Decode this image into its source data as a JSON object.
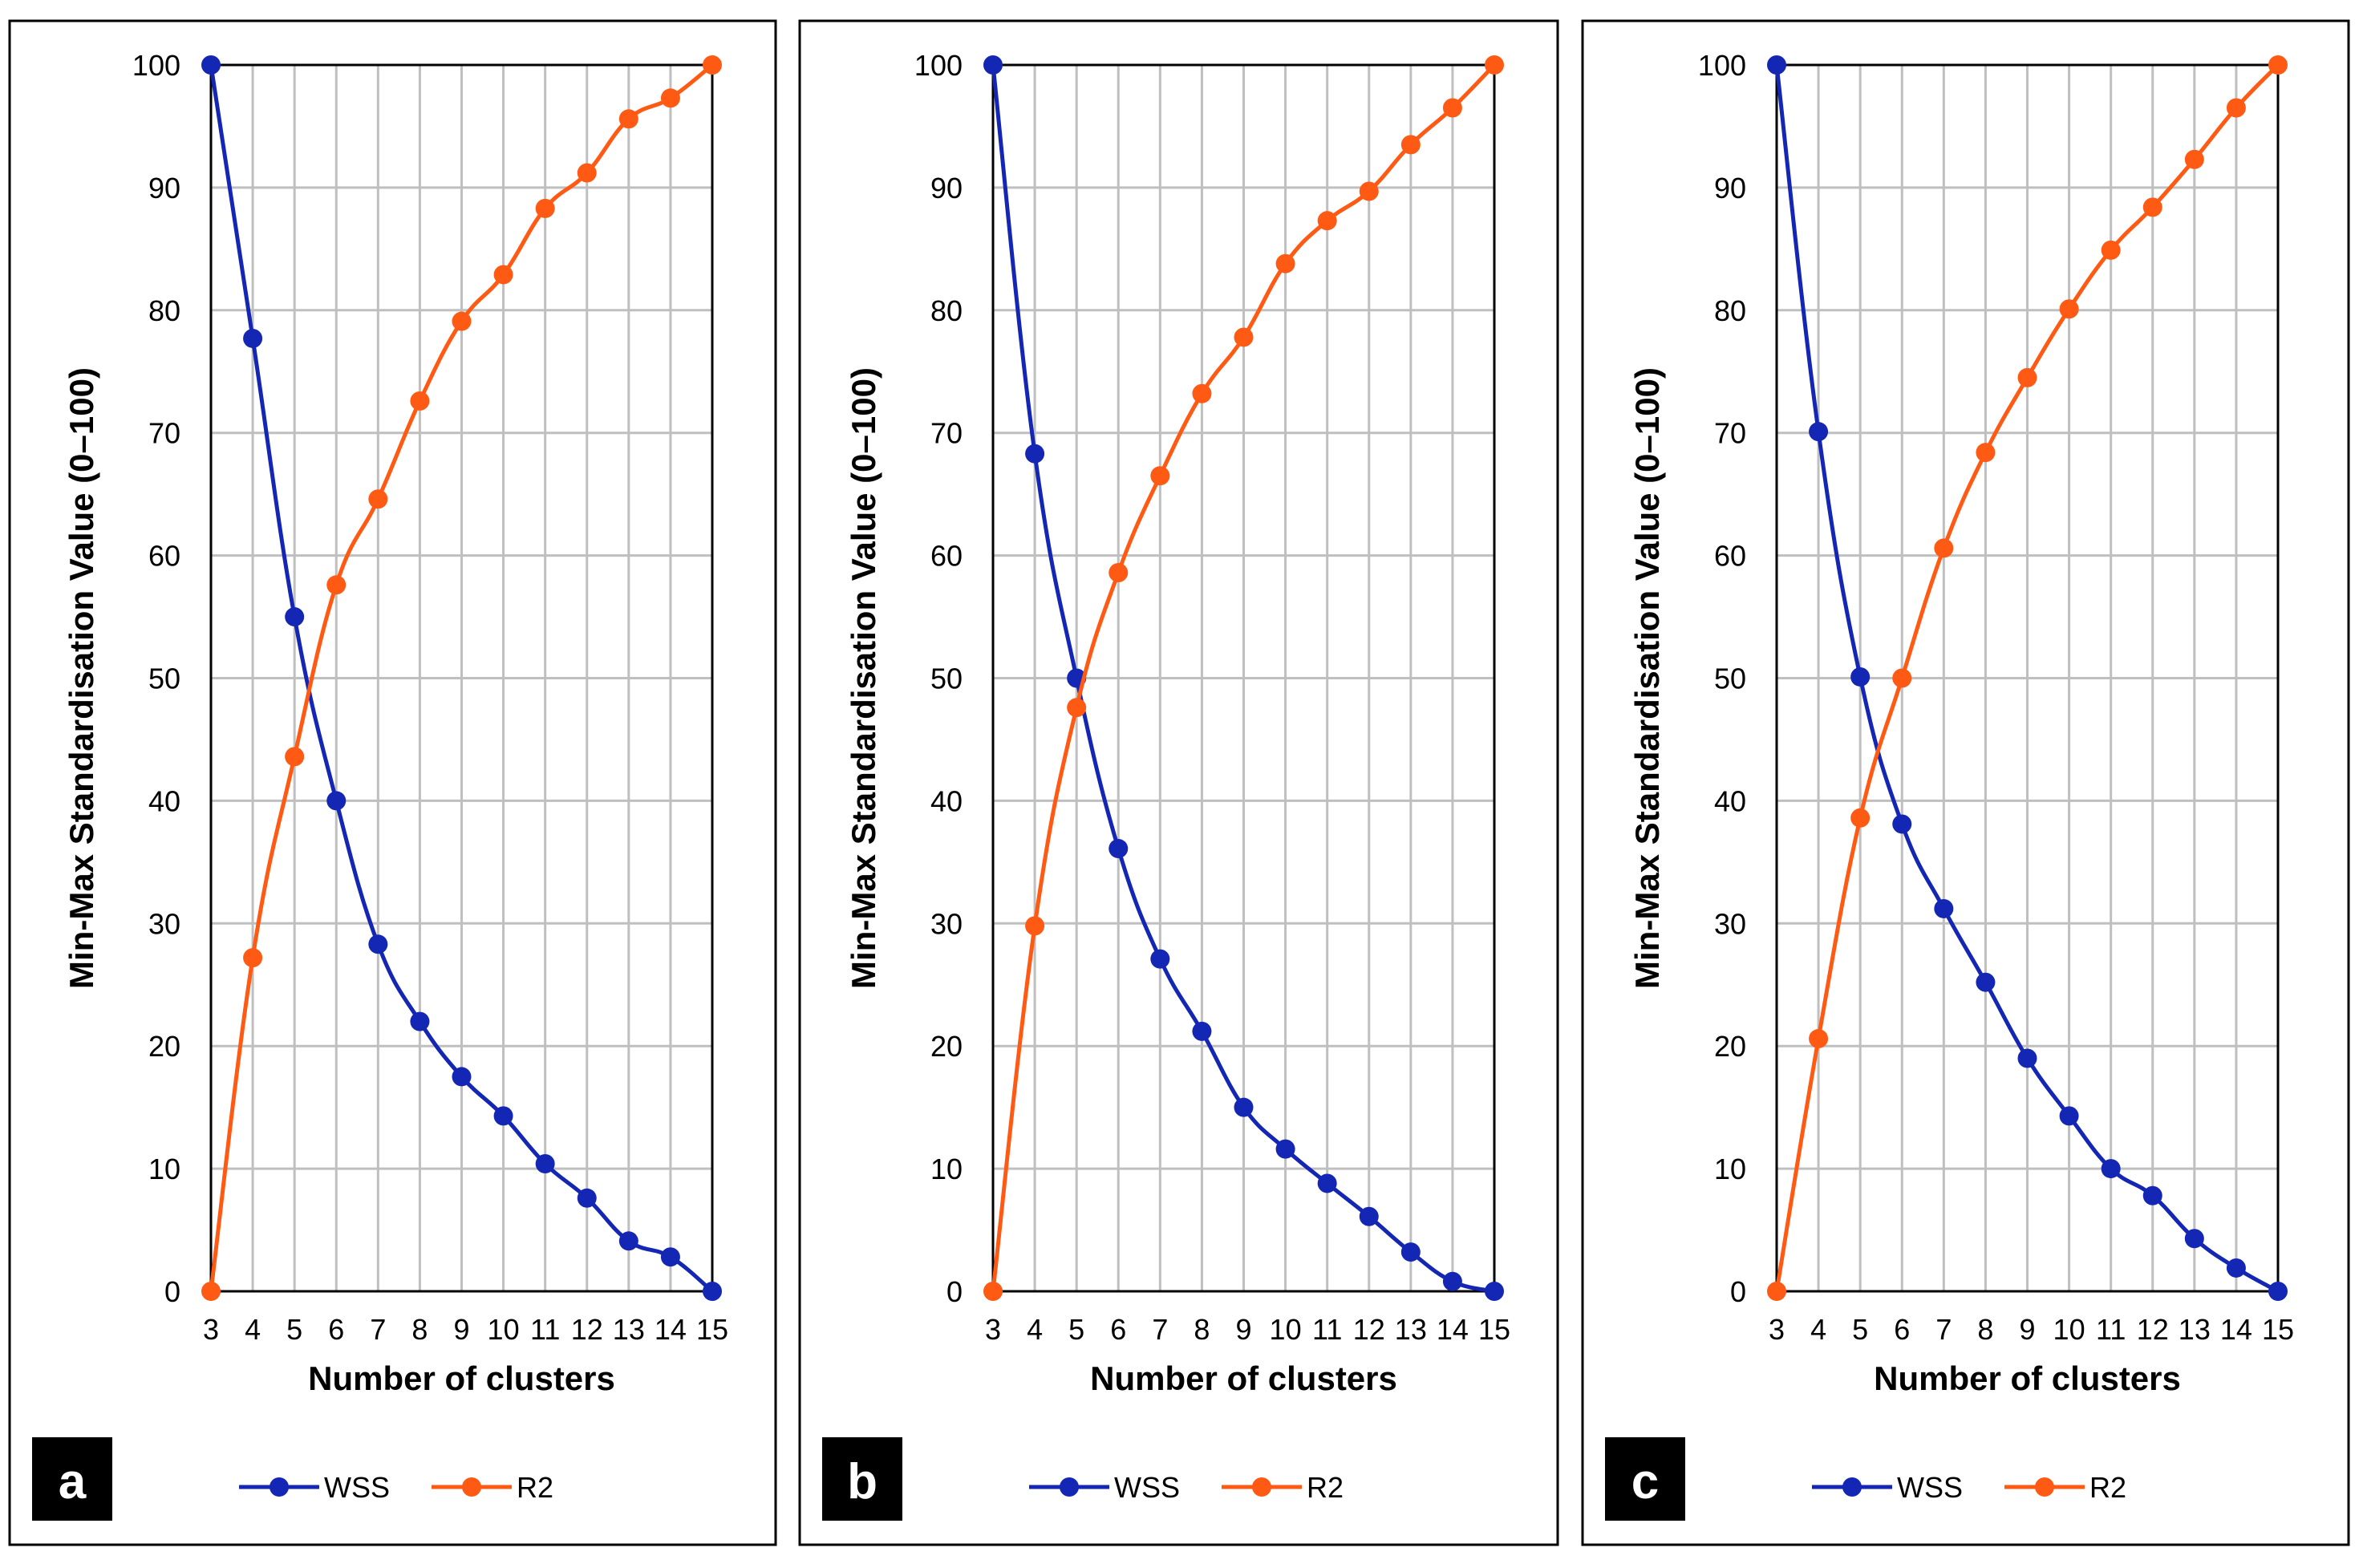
{
  "chart_data": [
    {
      "type": "line",
      "panel_label": "a",
      "xlabel": "Number of clusters",
      "ylabel": "Min-Max Standardisation Value (0–100)",
      "categories": [
        "3",
        "4",
        "5",
        "6",
        "7",
        "8",
        "9",
        "10",
        "11",
        "12",
        "13",
        "14",
        "15"
      ],
      "ylim": [
        0,
        100
      ],
      "yticks": [
        "0",
        "10",
        "20",
        "30",
        "40",
        "50",
        "60",
        "70",
        "80",
        "90",
        "100"
      ],
      "grid": true,
      "legend_position": "bottom",
      "series": [
        {
          "name": "WSS",
          "color": "#1426b4",
          "values": [
            100,
            77.7,
            55.0,
            40.0,
            28.3,
            22.0,
            17.5,
            14.3,
            10.4,
            7.6,
            4.1,
            2.8,
            0
          ]
        },
        {
          "name": "R2",
          "color": "#ff5a14",
          "values": [
            0,
            27.2,
            43.6,
            57.6,
            64.6,
            72.6,
            79.1,
            82.9,
            88.3,
            91.2,
            95.6,
            97.3,
            100
          ]
        }
      ]
    },
    {
      "type": "line",
      "panel_label": "b",
      "xlabel": "Number of clusters",
      "ylabel": "Min-Max Standardisation Value (0–100)",
      "categories": [
        "3",
        "4",
        "5",
        "6",
        "7",
        "8",
        "9",
        "10",
        "11",
        "12",
        "13",
        "14",
        "15"
      ],
      "ylim": [
        0,
        100
      ],
      "yticks": [
        "0",
        "10",
        "20",
        "30",
        "40",
        "50",
        "60",
        "70",
        "80",
        "90",
        "100"
      ],
      "grid": true,
      "legend_position": "bottom",
      "series": [
        {
          "name": "WSS",
          "color": "#1426b4",
          "values": [
            100,
            68.3,
            50.0,
            36.1,
            27.1,
            21.2,
            15.0,
            11.6,
            8.8,
            6.1,
            3.2,
            0.8,
            0
          ]
        },
        {
          "name": "R2",
          "color": "#ff5a14",
          "values": [
            0,
            29.8,
            47.6,
            58.6,
            66.5,
            73.2,
            77.8,
            83.8,
            87.3,
            89.7,
            93.5,
            96.5,
            100
          ]
        }
      ]
    },
    {
      "type": "line",
      "panel_label": "c",
      "xlabel": "Number of clusters",
      "ylabel": "Min-Max Standardisation Value (0–100)",
      "categories": [
        "3",
        "4",
        "5",
        "6",
        "7",
        "8",
        "9",
        "10",
        "11",
        "12",
        "13",
        "14",
        "15"
      ],
      "ylim": [
        0,
        100
      ],
      "yticks": [
        "0",
        "10",
        "20",
        "30",
        "40",
        "50",
        "60",
        "70",
        "80",
        "90",
        "100"
      ],
      "grid": true,
      "legend_position": "bottom",
      "series": [
        {
          "name": "WSS",
          "color": "#1426b4",
          "values": [
            100,
            70.1,
            50.1,
            38.1,
            31.2,
            25.2,
            19.0,
            14.3,
            10.0,
            7.8,
            4.3,
            1.9,
            0
          ]
        },
        {
          "name": "R2",
          "color": "#ff5a14",
          "values": [
            0,
            20.6,
            38.6,
            50.0,
            60.6,
            68.4,
            74.5,
            80.1,
            84.9,
            88.4,
            92.3,
            96.5,
            100
          ]
        }
      ]
    }
  ]
}
